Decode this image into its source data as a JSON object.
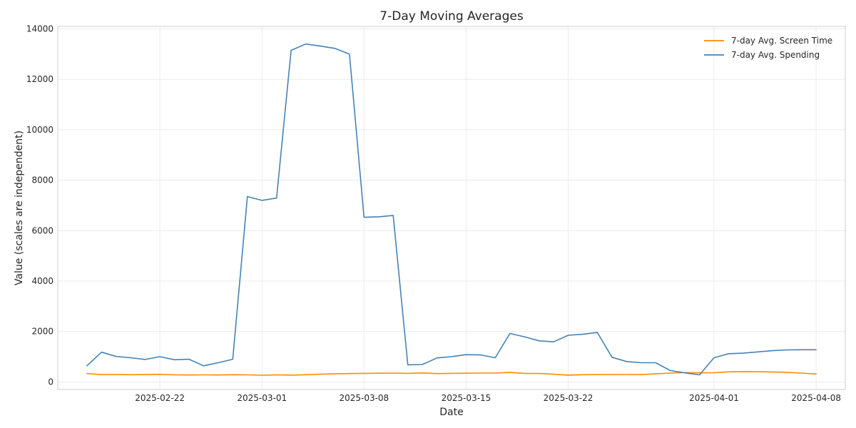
{
  "chart_data": {
    "type": "line",
    "title": "7-Day Moving Averages",
    "xlabel": "Date",
    "ylabel": "Value (scales are independent)",
    "x_type": "date",
    "xlim": [
      "2025-02-15",
      "2025-04-10"
    ],
    "ylim": [
      -300,
      14100
    ],
    "x_ticks": [
      "2025-02-22",
      "2025-03-01",
      "2025-03-08",
      "2025-03-15",
      "2025-03-22",
      "2025-04-01",
      "2025-04-08"
    ],
    "y_ticks": [
      0,
      2000,
      4000,
      6000,
      8000,
      10000,
      12000,
      14000
    ],
    "grid": true,
    "legend_position": "top-right",
    "x": [
      "2025-02-17",
      "2025-02-18",
      "2025-02-19",
      "2025-02-20",
      "2025-02-21",
      "2025-02-22",
      "2025-02-23",
      "2025-02-24",
      "2025-02-25",
      "2025-02-26",
      "2025-02-27",
      "2025-02-28",
      "2025-03-01",
      "2025-03-02",
      "2025-03-03",
      "2025-03-04",
      "2025-03-05",
      "2025-03-06",
      "2025-03-07",
      "2025-03-08",
      "2025-03-09",
      "2025-03-10",
      "2025-03-11",
      "2025-03-12",
      "2025-03-13",
      "2025-03-14",
      "2025-03-15",
      "2025-03-16",
      "2025-03-17",
      "2025-03-18",
      "2025-03-19",
      "2025-03-20",
      "2025-03-21",
      "2025-03-22",
      "2025-03-23",
      "2025-03-24",
      "2025-03-25",
      "2025-03-26",
      "2025-03-27",
      "2025-03-28",
      "2025-03-29",
      "2025-03-30",
      "2025-03-31",
      "2025-04-01",
      "2025-04-02",
      "2025-04-03",
      "2025-04-04",
      "2025-04-05",
      "2025-04-06",
      "2025-04-07",
      "2025-04-08"
    ],
    "series": [
      {
        "name": "7-day Avg. Screen Time",
        "color": "#ff8c00",
        "values": [
          330,
          290,
          290,
          285,
          290,
          300,
          280,
          275,
          280,
          275,
          285,
          280,
          265,
          280,
          270,
          285,
          305,
          325,
          330,
          340,
          345,
          350,
          340,
          355,
          330,
          340,
          345,
          350,
          350,
          375,
          340,
          335,
          305,
          270,
          285,
          290,
          290,
          295,
          290,
          320,
          350,
          370,
          360,
          365,
          400,
          410,
          405,
          395,
          375,
          350,
          315
        ]
      },
      {
        "name": "7-day Avg. Spending",
        "color": "#4682b4",
        "values": [
          640,
          1180,
          1010,
          960,
          890,
          1000,
          880,
          900,
          640,
          760,
          900,
          7350,
          7200,
          7290,
          13150,
          13400,
          13320,
          13230,
          13000,
          6530,
          6550,
          6600,
          680,
          690,
          950,
          1000,
          1080,
          1070,
          960,
          1920,
          1790,
          1630,
          1590,
          1850,
          1890,
          1960,
          980,
          810,
          760,
          760,
          450,
          360,
          280,
          960,
          1120,
          1140,
          1190,
          1240,
          1270,
          1275,
          1275
        ]
      }
    ]
  }
}
